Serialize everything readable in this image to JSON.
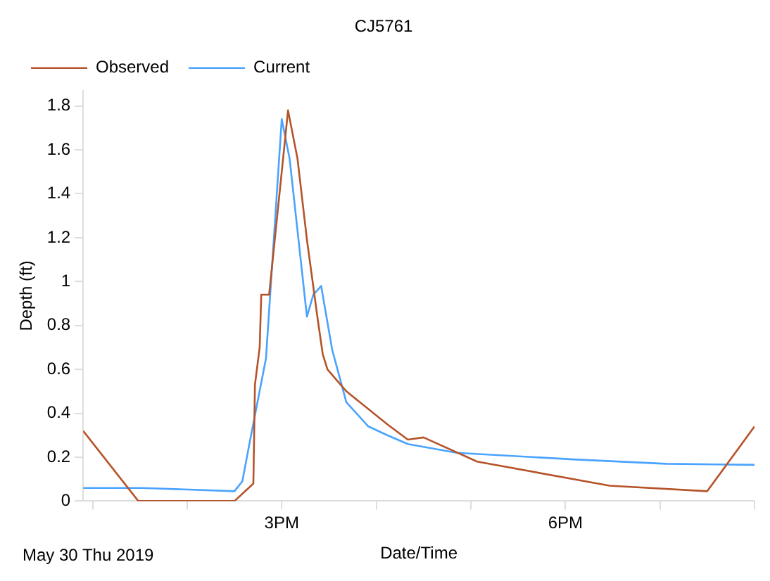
{
  "chart_data": {
    "type": "line",
    "title": "CJ5761",
    "xlabel": "Date/Time",
    "ylabel": "Depth (ft)",
    "annotations": [
      "May 30 Thu 2019"
    ],
    "legend": "top left",
    "grid": false,
    "marker": "none",
    "line_style": "solid",
    "xlim": [
      "2019-05-30T12:54",
      "2019-05-30T20:00"
    ],
    "xticks": [
      {
        "value": "2019-05-30T13:00",
        "label": null
      },
      {
        "value": "2019-05-30T14:00",
        "label": null
      },
      {
        "value": "2019-05-30T15:00",
        "label": "3PM"
      },
      {
        "value": "2019-05-30T16:00",
        "label": null
      },
      {
        "value": "2019-05-30T17:00",
        "label": null
      },
      {
        "value": "2019-05-30T18:00",
        "label": "6PM"
      },
      {
        "value": "2019-05-30T19:00",
        "label": null
      },
      {
        "value": "2019-05-30T20:00",
        "label": null
      }
    ],
    "ylim": [
      0,
      1.87
    ],
    "yticks": [
      0,
      0.2,
      0.4,
      0.6,
      0.8,
      1.0,
      1.2,
      1.4,
      1.6,
      1.8
    ],
    "series": [
      {
        "name": "Observed",
        "color": "#b5542a",
        "x": [
          "2019-05-30T12:54",
          "2019-05-30T13:29",
          "2019-05-30T14:30",
          "2019-05-30T14:42",
          "2019-05-30T14:43",
          "2019-05-30T14:46",
          "2019-05-30T14:47",
          "2019-05-30T14:52",
          "2019-05-30T15:04",
          "2019-05-30T15:10",
          "2019-05-30T15:16",
          "2019-05-30T15:23",
          "2019-05-30T15:26",
          "2019-05-30T15:29",
          "2019-05-30T15:41",
          "2019-05-30T16:07",
          "2019-05-30T16:20",
          "2019-05-30T16:30",
          "2019-05-30T17:04",
          "2019-05-30T18:28",
          "2019-05-30T19:30",
          "2019-05-30T20:00"
        ],
        "values": [
          0.32,
          0,
          0,
          0.08,
          0.53,
          0.7,
          0.94,
          0.94,
          1.78,
          1.56,
          1.19,
          0.82,
          0.67,
          0.6,
          0.5,
          0.35,
          0.28,
          0.29,
          0.18,
          0.07,
          0.045,
          0.34
        ]
      },
      {
        "name": "Current",
        "color": "#4aa3ff",
        "x": [
          "2019-05-30T12:54",
          "2019-05-30T13:31",
          "2019-05-30T14:30",
          "2019-05-30T14:35",
          "2019-05-30T14:40",
          "2019-05-30T14:50",
          "2019-05-30T15:00",
          "2019-05-30T15:05",
          "2019-05-30T15:16",
          "2019-05-30T15:20",
          "2019-05-30T15:25",
          "2019-05-30T15:32",
          "2019-05-30T15:41",
          "2019-05-30T15:55",
          "2019-05-30T16:07",
          "2019-05-30T16:20",
          "2019-05-30T16:51",
          "2019-05-30T18:05",
          "2019-05-30T19:04",
          "2019-05-30T20:00"
        ],
        "values": [
          0.06,
          0.06,
          0.045,
          0.09,
          0.28,
          0.65,
          1.74,
          1.56,
          0.84,
          0.94,
          0.98,
          0.69,
          0.45,
          0.34,
          0.3,
          0.26,
          0.22,
          0.19,
          0.17,
          0.165
        ]
      }
    ]
  }
}
